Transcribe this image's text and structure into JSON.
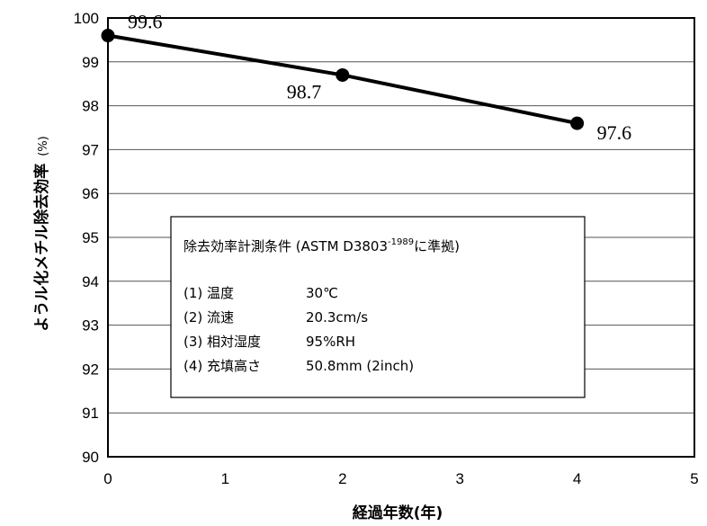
{
  "chart_data": {
    "type": "line",
    "title": "",
    "xlabel": "経過年数(年)",
    "ylabel": "ようル化メチル除去効率",
    "ylabel_unit": "(%)",
    "xlim": [
      0,
      5
    ],
    "ylim": [
      90,
      100
    ],
    "x_ticks": [
      "0",
      "1",
      "2",
      "3",
      "4",
      "5"
    ],
    "y_ticks": [
      "90",
      "91",
      "92",
      "93",
      "94",
      "95",
      "96",
      "97",
      "98",
      "99",
      "100"
    ],
    "grid": "horizontal",
    "series": [
      {
        "points": [
          {
            "x": 0,
            "y": 99.6,
            "label": "99.6"
          },
          {
            "x": 2,
            "y": 98.7,
            "label": "98.7"
          },
          {
            "x": 4,
            "y": 97.6,
            "label": "97.6"
          }
        ]
      }
    ],
    "note": {
      "heading": "除去効率計測条件 (ASTM D3803",
      "heading_sup": "-1989",
      "heading_end": "に準拠)",
      "rows": [
        {
          "label": "(1) 温度",
          "value": "30℃"
        },
        {
          "label": "(2) 流速",
          "value": "20.3cm/s"
        },
        {
          "label": "(3) 相対湿度",
          "value": "95%RH"
        },
        {
          "label": "(4) 充填高さ",
          "value": "50.8mm (2inch)"
        }
      ]
    }
  }
}
